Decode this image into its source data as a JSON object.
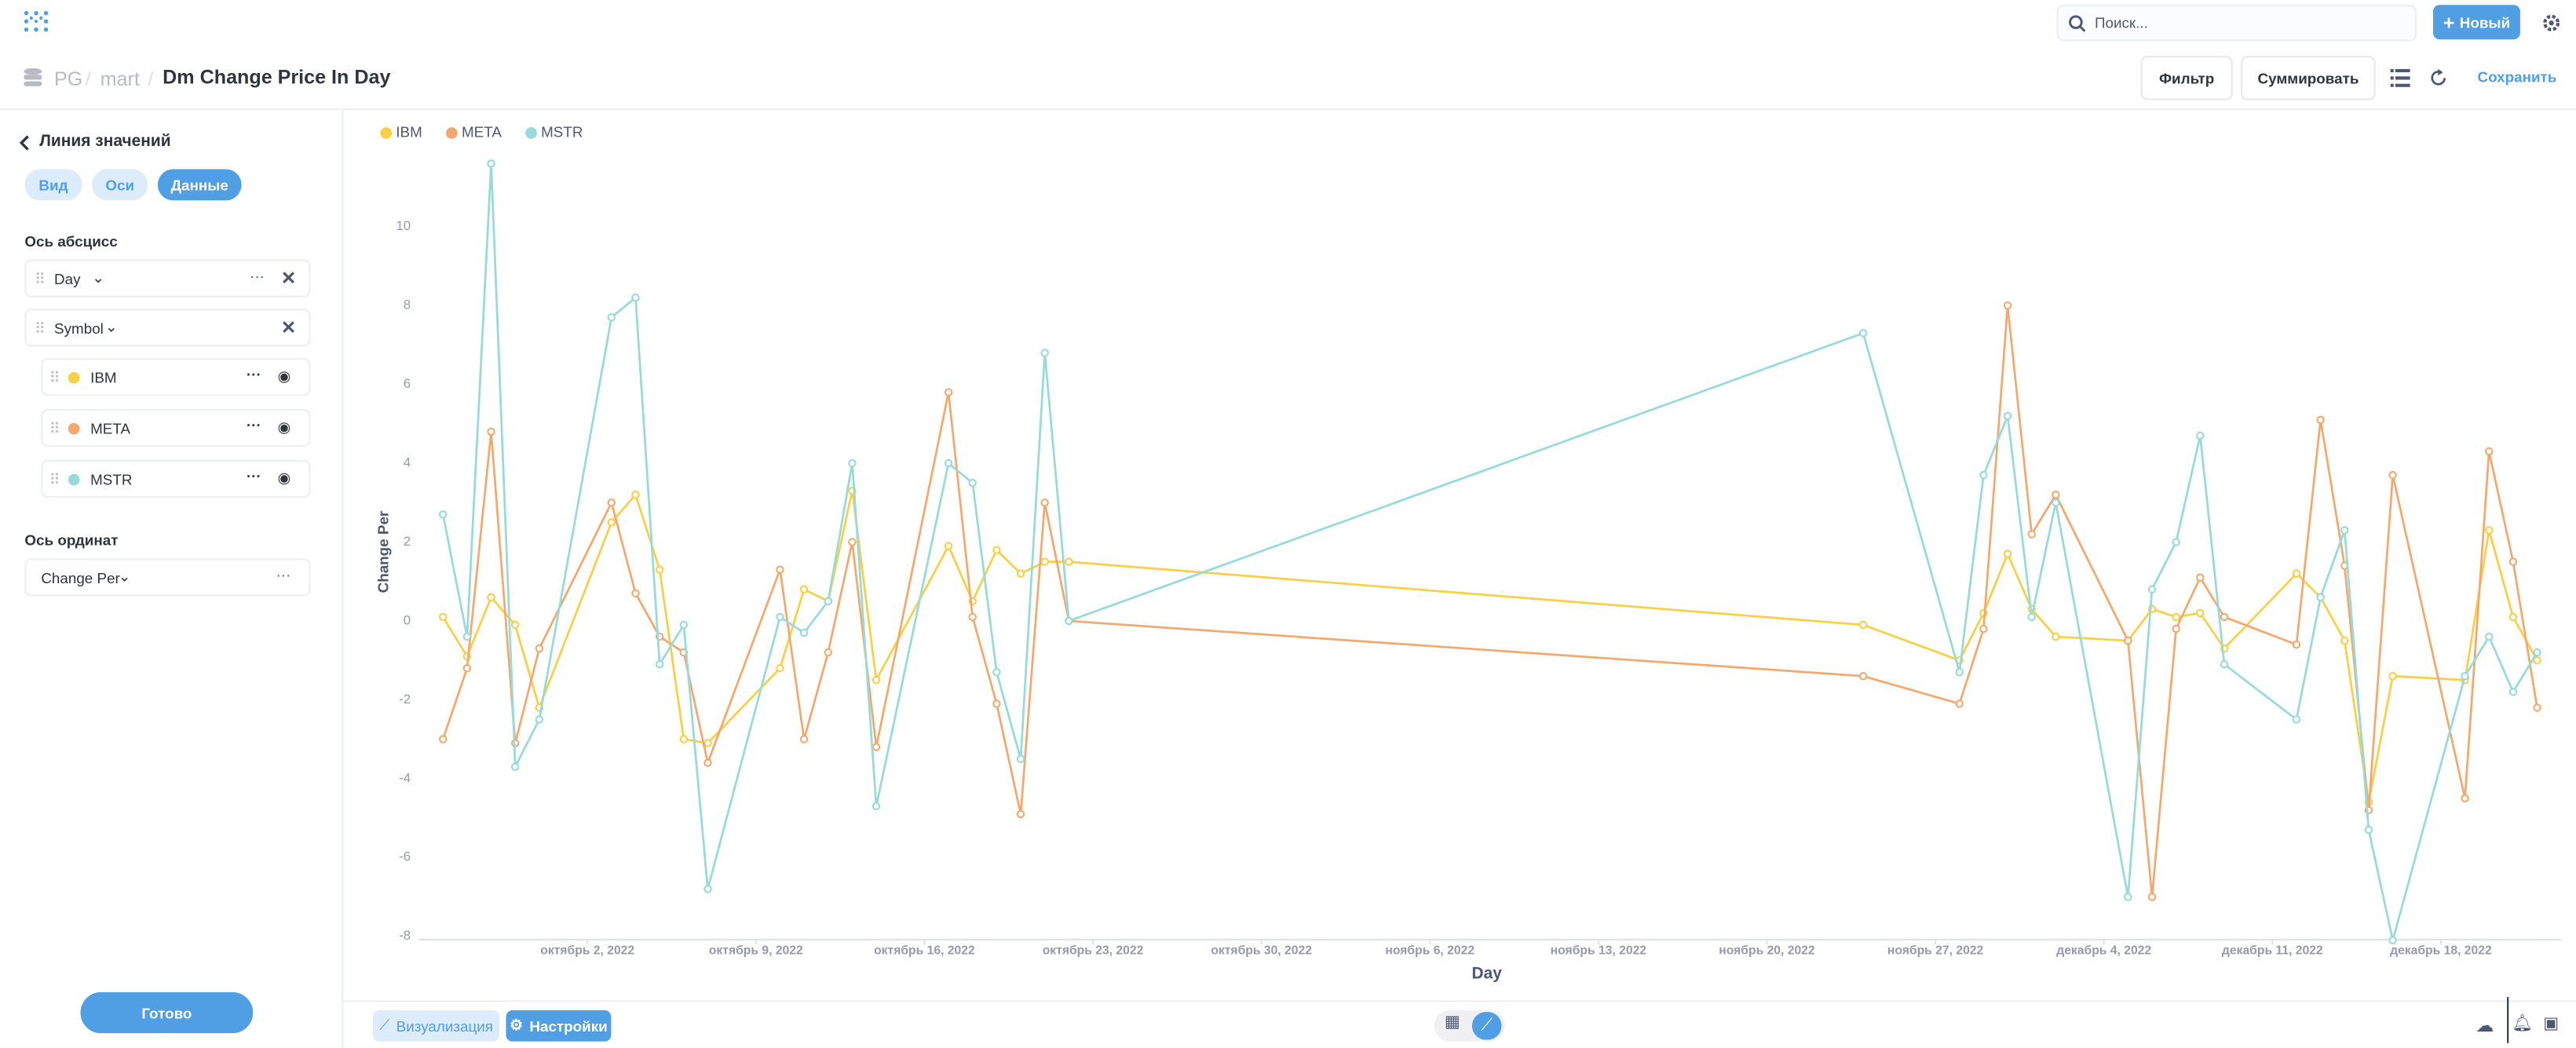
{
  "app": {
    "search": "Поиск...",
    "new_button": "Новый",
    "breadcrumb": [
      "PG",
      "mart",
      "Dm Change Price In Day"
    ],
    "filter": "Фильтр",
    "summarize": "Суммировать",
    "save": "Сохранить"
  },
  "sidebar": {
    "title": "Линия значений",
    "tabs": [
      "Вид",
      "Оси",
      "Данные"
    ],
    "x_section": "Ось абсцисс",
    "x_field": "Day",
    "breakout": "Symbol",
    "y_section": "Ось ординат",
    "y_field": "Change Per",
    "done": "Готово"
  },
  "footer": {
    "visualization": "Визуализация",
    "settings": "Настройки"
  },
  "chart_data": {
    "type": "line",
    "x_label": "Day",
    "y_label": "Change Per",
    "legend": "top-left",
    "grid": false,
    "x": [
      "2022-09-26",
      "2022-09-27",
      "2022-09-28",
      "2022-09-29",
      "2022-09-30",
      "2022-10-03",
      "2022-10-04",
      "2022-10-05",
      "2022-10-06",
      "2022-10-07",
      "2022-10-10",
      "2022-10-11",
      "2022-10-12",
      "2022-10-13",
      "2022-10-14",
      "2022-10-17",
      "2022-10-18",
      "2022-10-19",
      "2022-10-20",
      "2022-10-21",
      "2022-10-22",
      "2022-11-24",
      "2022-11-28",
      "2022-11-29",
      "2022-11-30",
      "2022-12-01",
      "2022-12-02",
      "2022-12-05",
      "2022-12-06",
      "2022-12-07",
      "2022-12-08",
      "2022-12-09",
      "2022-12-12",
      "2022-12-13",
      "2022-12-14",
      "2022-12-15",
      "2022-12-16",
      "2022-12-19",
      "2022-12-20",
      "2022-12-21",
      "2022-12-22"
    ],
    "series": [
      {
        "name": "IBM",
        "color": "#F9CF48",
        "values": [
          0.1,
          -0.9,
          0.6,
          -0.1,
          -2.2,
          2.5,
          3.2,
          1.3,
          -3.0,
          -3.1,
          -1.2,
          0.8,
          0.5,
          3.3,
          -1.5,
          1.9,
          0.5,
          1.8,
          1.2,
          1.5,
          1.5,
          -0.1,
          -1.0,
          0.2,
          1.7,
          0.3,
          -0.4,
          -0.5,
          0.3,
          0.1,
          0.2,
          -0.7,
          1.2,
          0.6,
          -0.5,
          -4.6,
          -1.4,
          -1.5,
          2.3,
          0.1,
          -1.0
        ]
      },
      {
        "name": "META",
        "color": "#F2A86F",
        "values": [
          -3.0,
          -1.2,
          4.8,
          -3.1,
          -0.7,
          3.0,
          0.7,
          -0.4,
          -0.8,
          -3.6,
          1.3,
          -3.0,
          -0.8,
          2.0,
          -3.2,
          5.8,
          0.1,
          -2.1,
          -4.9,
          3.0,
          0,
          -1.4,
          -2.1,
          -0.2,
          8.0,
          2.2,
          3.2,
          -0.5,
          -7.0,
          -0.2,
          1.1,
          0.1,
          -0.6,
          5.1,
          1.4,
          -4.8,
          3.7,
          -4.5,
          4.3,
          1.5,
          -2.2
        ]
      },
      {
        "name": "MSTR",
        "color": "#98D9D9",
        "values": [
          2.7,
          -0.4,
          11.6,
          -3.7,
          -2.5,
          7.7,
          8.2,
          -1.1,
          -0.1,
          -6.8,
          0.1,
          -0.3,
          0.5,
          4.0,
          -4.7,
          4.0,
          3.5,
          -1.3,
          -3.5,
          6.8,
          0,
          7.3,
          -1.3,
          3.7,
          5.2,
          0.1,
          3.0,
          -7.0,
          0.8,
          2.0,
          4.7,
          -1.1,
          -2.5,
          0.6,
          2.3,
          -5.3,
          -8.1,
          -1.4,
          -0.4,
          -1.8,
          -0.8
        ]
      }
    ],
    "xlim": [
      "2022-09-25",
      "2022-12-23"
    ],
    "xticks": [
      {
        "value": "2022-10-02",
        "label": "октябрь 2, 2022"
      },
      {
        "value": "2022-10-09",
        "label": "октябрь 9, 2022"
      },
      {
        "value": "2022-10-16",
        "label": "октябрь 16, 2022"
      },
      {
        "value": "2022-10-23",
        "label": "октябрь 23, 2022"
      },
      {
        "value": "2022-10-30",
        "label": "октябрь 30, 2022"
      },
      {
        "value": "2022-11-06",
        "label": "ноябрь 6, 2022"
      },
      {
        "value": "2022-11-13",
        "label": "ноябрь 13, 2022"
      },
      {
        "value": "2022-11-20",
        "label": "ноябрь 20, 2022"
      },
      {
        "value": "2022-11-27",
        "label": "ноябрь 27, 2022"
      },
      {
        "value": "2022-12-04",
        "label": "декабрь 4, 2022"
      },
      {
        "value": "2022-12-11",
        "label": "декабрь 11, 2022"
      },
      {
        "value": "2022-12-18",
        "label": "декабрь 18, 2022"
      }
    ],
    "ylim": [
      -8,
      12
    ],
    "yticks": [
      -8,
      -6,
      -4,
      -2,
      0,
      2,
      4,
      6,
      8,
      10
    ]
  }
}
